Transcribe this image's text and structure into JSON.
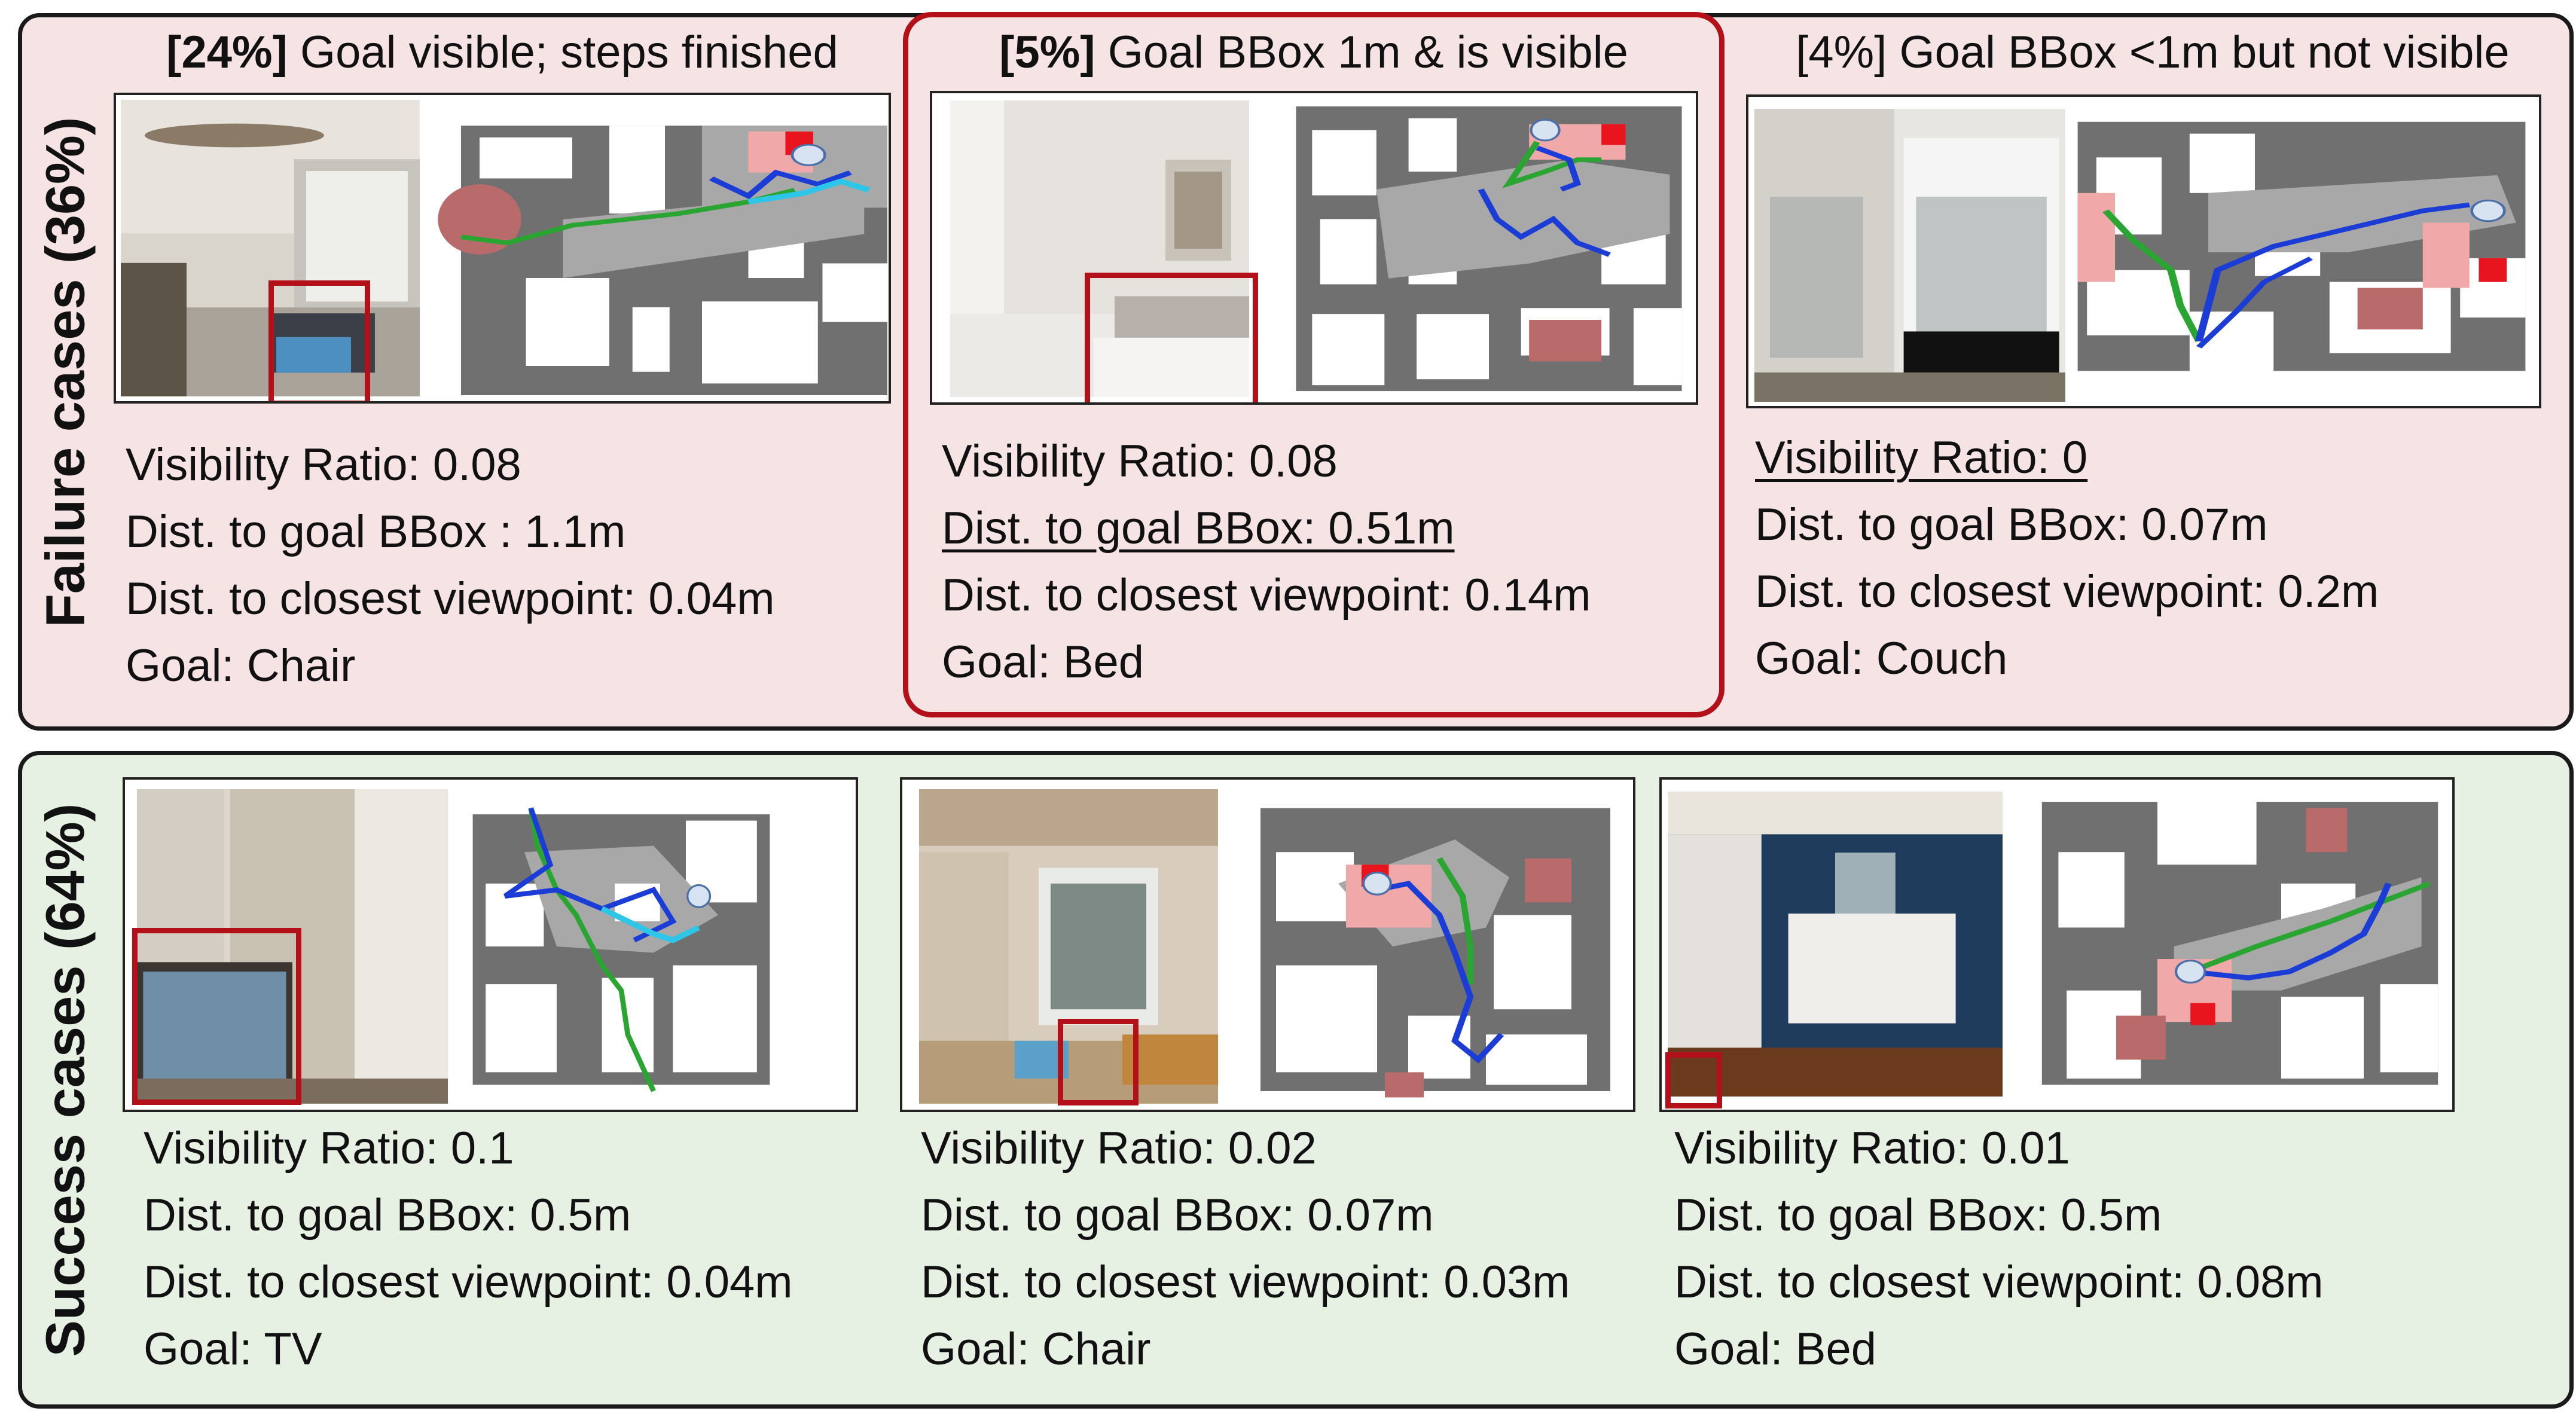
{
  "failure": {
    "label": "Failure cases (36%)",
    "cases": [
      {
        "title_pct": "[24%]",
        "title_text": " Goal visible; steps finished",
        "visibility": "Visibility Ratio: 0.08",
        "dist_bbox": "Dist. to goal BBox : 1.1m",
        "dist_view": "Dist. to closest viewpoint: 0.04m",
        "goal": "Goal: Chair"
      },
      {
        "title_pct": "[5%]",
        "title_text": " Goal BBox 1m & is visible",
        "visibility": "Visibility Ratio: 0.08",
        "dist_bbox": "Dist. to goal BBox: 0.51m",
        "dist_view": "Dist. to closest viewpoint: 0.14m",
        "goal": "Goal: Bed"
      },
      {
        "title_pct": "",
        "title_text": "[4%] Goal BBox <1m but not visible",
        "visibility": "Visibility Ratio: 0",
        "dist_bbox": "Dist. to goal BBox: 0.07m",
        "dist_view": "Dist. to closest viewpoint: 0.2m",
        "goal": "Goal: Couch"
      }
    ]
  },
  "success": {
    "label": "Success cases (64%)",
    "cases": [
      {
        "visibility": "Visibility Ratio: 0.1",
        "dist_bbox": "Dist. to goal BBox: 0.5m",
        "dist_view": "Dist. to closest viewpoint: 0.04m",
        "goal": "Goal: TV"
      },
      {
        "visibility": "Visibility Ratio: 0.02",
        "dist_bbox": "Dist. to goal BBox: 0.07m",
        "dist_view": "Dist. to closest viewpoint: 0.03m",
        "goal": "Goal: Chair"
      },
      {
        "visibility": "Visibility Ratio: 0.01",
        "dist_bbox": "Dist. to goal BBox: 0.5m",
        "dist_view": "Dist. to closest viewpoint: 0.08m",
        "goal": "Goal: Bed"
      }
    ]
  },
  "colors": {
    "failure_bg": "#f6e3e4",
    "success_bg": "#e6f1e4",
    "highlight": "#b3101a",
    "obstacle": "#707070",
    "explored": "#a8a8a8",
    "goal_region": "#f0a8a8",
    "goal_marker": "#e8141e",
    "path_green": "#2aa532",
    "path_blue": "#1c3cd6",
    "path_cyan": "#2ec6e8"
  }
}
